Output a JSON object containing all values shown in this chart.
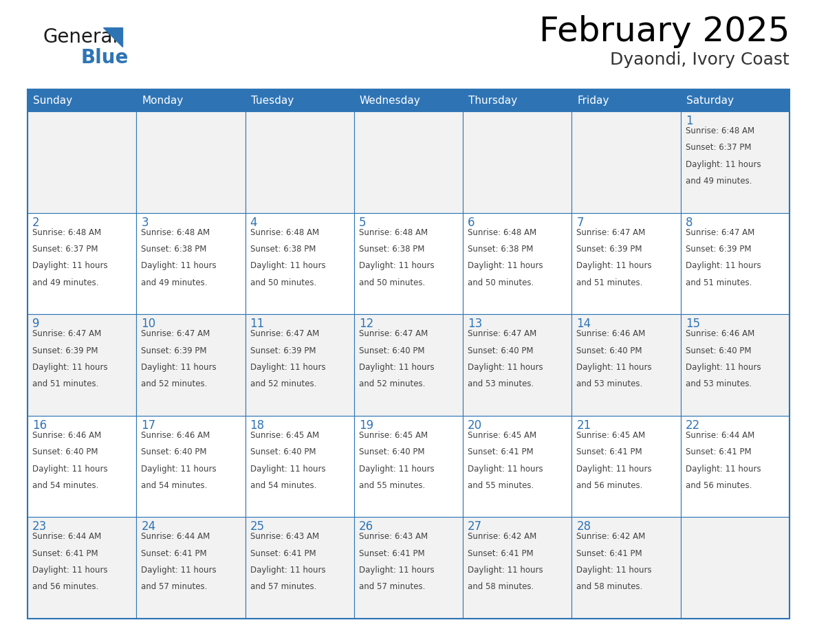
{
  "title": "February 2025",
  "subtitle": "Dyaondi, Ivory Coast",
  "header_color": "#2E74B5",
  "header_text_color": "#FFFFFF",
  "cell_bg_white": "#FFFFFF",
  "cell_bg_gray": "#F2F2F2",
  "border_color": "#2E74B5",
  "day_number_color": "#2E74B5",
  "detail_text_color": "#404040",
  "logo_general_color": "#1a1a1a",
  "logo_blue_color": "#2E74B5",
  "days_of_week": [
    "Sunday",
    "Monday",
    "Tuesday",
    "Wednesday",
    "Thursday",
    "Friday",
    "Saturday"
  ],
  "weeks": [
    [
      {
        "day": null,
        "sunrise": null,
        "sunset": null,
        "daylight": null
      },
      {
        "day": null,
        "sunrise": null,
        "sunset": null,
        "daylight": null
      },
      {
        "day": null,
        "sunrise": null,
        "sunset": null,
        "daylight": null
      },
      {
        "day": null,
        "sunrise": null,
        "sunset": null,
        "daylight": null
      },
      {
        "day": null,
        "sunrise": null,
        "sunset": null,
        "daylight": null
      },
      {
        "day": null,
        "sunrise": null,
        "sunset": null,
        "daylight": null
      },
      {
        "day": 1,
        "sunrise": "6:48 AM",
        "sunset": "6:37 PM",
        "daylight": "11 hours and 49 minutes."
      }
    ],
    [
      {
        "day": 2,
        "sunrise": "6:48 AM",
        "sunset": "6:37 PM",
        "daylight": "11 hours and 49 minutes."
      },
      {
        "day": 3,
        "sunrise": "6:48 AM",
        "sunset": "6:38 PM",
        "daylight": "11 hours and 49 minutes."
      },
      {
        "day": 4,
        "sunrise": "6:48 AM",
        "sunset": "6:38 PM",
        "daylight": "11 hours and 50 minutes."
      },
      {
        "day": 5,
        "sunrise": "6:48 AM",
        "sunset": "6:38 PM",
        "daylight": "11 hours and 50 minutes."
      },
      {
        "day": 6,
        "sunrise": "6:48 AM",
        "sunset": "6:38 PM",
        "daylight": "11 hours and 50 minutes."
      },
      {
        "day": 7,
        "sunrise": "6:47 AM",
        "sunset": "6:39 PM",
        "daylight": "11 hours and 51 minutes."
      },
      {
        "day": 8,
        "sunrise": "6:47 AM",
        "sunset": "6:39 PM",
        "daylight": "11 hours and 51 minutes."
      }
    ],
    [
      {
        "day": 9,
        "sunrise": "6:47 AM",
        "sunset": "6:39 PM",
        "daylight": "11 hours and 51 minutes."
      },
      {
        "day": 10,
        "sunrise": "6:47 AM",
        "sunset": "6:39 PM",
        "daylight": "11 hours and 52 minutes."
      },
      {
        "day": 11,
        "sunrise": "6:47 AM",
        "sunset": "6:39 PM",
        "daylight": "11 hours and 52 minutes."
      },
      {
        "day": 12,
        "sunrise": "6:47 AM",
        "sunset": "6:40 PM",
        "daylight": "11 hours and 52 minutes."
      },
      {
        "day": 13,
        "sunrise": "6:47 AM",
        "sunset": "6:40 PM",
        "daylight": "11 hours and 53 minutes."
      },
      {
        "day": 14,
        "sunrise": "6:46 AM",
        "sunset": "6:40 PM",
        "daylight": "11 hours and 53 minutes."
      },
      {
        "day": 15,
        "sunrise": "6:46 AM",
        "sunset": "6:40 PM",
        "daylight": "11 hours and 53 minutes."
      }
    ],
    [
      {
        "day": 16,
        "sunrise": "6:46 AM",
        "sunset": "6:40 PM",
        "daylight": "11 hours and 54 minutes."
      },
      {
        "day": 17,
        "sunrise": "6:46 AM",
        "sunset": "6:40 PM",
        "daylight": "11 hours and 54 minutes."
      },
      {
        "day": 18,
        "sunrise": "6:45 AM",
        "sunset": "6:40 PM",
        "daylight": "11 hours and 54 minutes."
      },
      {
        "day": 19,
        "sunrise": "6:45 AM",
        "sunset": "6:40 PM",
        "daylight": "11 hours and 55 minutes."
      },
      {
        "day": 20,
        "sunrise": "6:45 AM",
        "sunset": "6:41 PM",
        "daylight": "11 hours and 55 minutes."
      },
      {
        "day": 21,
        "sunrise": "6:45 AM",
        "sunset": "6:41 PM",
        "daylight": "11 hours and 56 minutes."
      },
      {
        "day": 22,
        "sunrise": "6:44 AM",
        "sunset": "6:41 PM",
        "daylight": "11 hours and 56 minutes."
      }
    ],
    [
      {
        "day": 23,
        "sunrise": "6:44 AM",
        "sunset": "6:41 PM",
        "daylight": "11 hours and 56 minutes."
      },
      {
        "day": 24,
        "sunrise": "6:44 AM",
        "sunset": "6:41 PM",
        "daylight": "11 hours and 57 minutes."
      },
      {
        "day": 25,
        "sunrise": "6:43 AM",
        "sunset": "6:41 PM",
        "daylight": "11 hours and 57 minutes."
      },
      {
        "day": 26,
        "sunrise": "6:43 AM",
        "sunset": "6:41 PM",
        "daylight": "11 hours and 57 minutes."
      },
      {
        "day": 27,
        "sunrise": "6:42 AM",
        "sunset": "6:41 PM",
        "daylight": "11 hours and 58 minutes."
      },
      {
        "day": 28,
        "sunrise": "6:42 AM",
        "sunset": "6:41 PM",
        "daylight": "11 hours and 58 minutes."
      },
      {
        "day": null,
        "sunrise": null,
        "sunset": null,
        "daylight": null
      }
    ]
  ]
}
